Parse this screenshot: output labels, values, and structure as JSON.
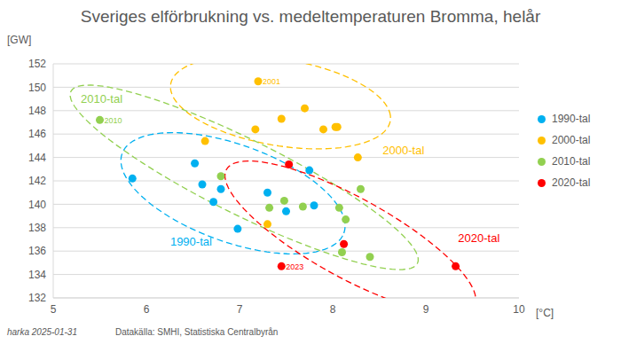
{
  "chart_data": {
    "type": "scatter",
    "title": "Sveriges elförbrukning vs. medeltemperaturen Bromma, helår",
    "x_label": "[°C]",
    "y_label": "[GW]",
    "xlim": [
      5,
      10
    ],
    "xticks": [
      5,
      6,
      7,
      8,
      9,
      10
    ],
    "ylim": [
      132,
      152
    ],
    "yticks": [
      132,
      134,
      136,
      138,
      140,
      142,
      144,
      146,
      148,
      150,
      152
    ],
    "grid": true,
    "legend": "right",
    "marker": "circle",
    "series": [
      {
        "name": "1990-tal",
        "color": "#00b0f0",
        "x": [
          5.85,
          6.52,
          6.6,
          6.8,
          6.72,
          6.98,
          7.3,
          7.5,
          7.8,
          7.75
        ],
        "values": [
          142.2,
          143.5,
          141.7,
          141.3,
          140.2,
          137.9,
          141.0,
          139.4,
          139.9,
          142.9
        ]
      },
      {
        "name": "2000-tal",
        "color": "#ffc000",
        "x": [
          7.2,
          7.7,
          7.45,
          7.17,
          6.63,
          7.9,
          8.03,
          8.05,
          8.27,
          7.3
        ],
        "values": [
          150.5,
          148.2,
          147.3,
          146.4,
          145.4,
          146.4,
          146.6,
          146.6,
          144.0,
          138.3
        ]
      },
      {
        "name": "2010-tal",
        "color": "#92d050",
        "x": [
          5.5,
          6.8,
          7.32,
          7.48,
          7.68,
          8.07,
          8.14,
          8.1,
          8.4,
          8.3
        ],
        "values": [
          147.2,
          142.4,
          139.7,
          140.3,
          139.8,
          139.7,
          138.7,
          135.9,
          135.5,
          141.3
        ]
      },
      {
        "name": "2020-tal",
        "color": "#ff0000",
        "x": [
          7.53,
          8.12,
          7.45,
          9.32
        ],
        "values": [
          143.4,
          136.6,
          134.7,
          134.7
        ]
      }
    ],
    "ellipses": [
      {
        "label": "2000-tal",
        "color": "#ffc000",
        "line_style": "dashed",
        "center": [
          7.44,
          148.7
        ],
        "axis_a": [
          1.18,
          -1.14
        ],
        "axis_b": [
          -0.06,
          3.8
        ],
        "label_at": [
          8.76,
          144.6
        ]
      },
      {
        "label": "1990-tal",
        "color": "#00b0f0",
        "line_style": "dashed",
        "center": [
          6.93,
          140.94
        ],
        "axis_a": [
          1.19,
          -3.41
        ],
        "axis_b": [
          0.18,
          3.9
        ],
        "label_at": [
          6.48,
          136.8
        ]
      },
      {
        "label": "2010-tal",
        "color": "#92d050",
        "line_style": "dashed",
        "center": [
          7.05,
          142.3
        ],
        "axis_a": [
          1.86,
          -7.35
        ],
        "axis_b": [
          0.18,
          2.85
        ],
        "label_at": [
          5.52,
          149.0
        ]
      },
      {
        "label": "2020-tal",
        "color": "#ff0000",
        "line_style": "dashed",
        "center": [
          8.19,
          137.15
        ],
        "axis_a": [
          1.33,
          -5.83
        ],
        "axis_b": [
          0.21,
          2.98
        ],
        "label_at": [
          9.57,
          137.15
        ]
      }
    ],
    "annotations": [
      {
        "text": "2001",
        "x": 7.2,
        "y": 150.5,
        "color": "#ffc000"
      },
      {
        "text": "2010",
        "x": 5.5,
        "y": 147.2,
        "color": "#92d050"
      },
      {
        "text": "2023",
        "x": 7.45,
        "y": 134.7,
        "color": "#ff0000"
      }
    ],
    "footnotes": [
      "harka 2025-01-31",
      "Datakälla: SMHI, Statistiska Centralbyrån"
    ]
  }
}
